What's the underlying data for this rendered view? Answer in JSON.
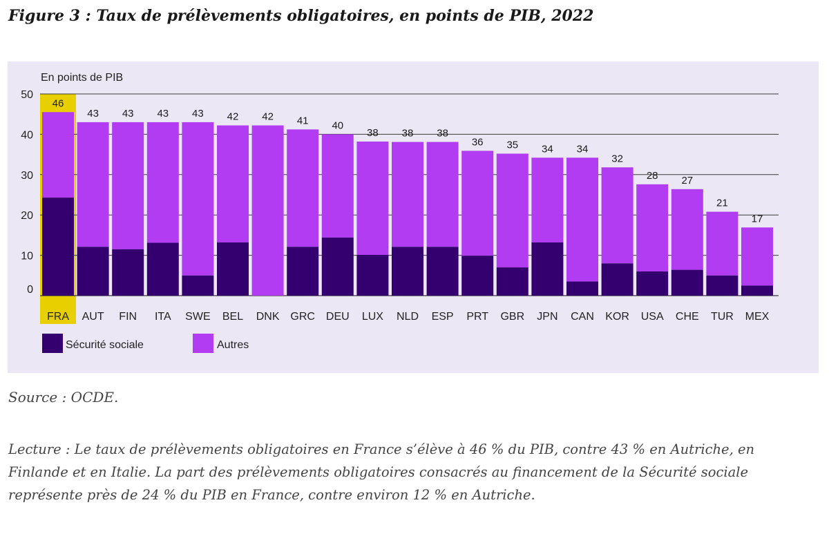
{
  "title": "Figure 3 : Taux de prélèvements obligatoires, en points de PIB, 2022",
  "source": "Source : OCDE.",
  "lecture": "Lecture : Le taux de prélèvements obligatoires en France s’élève à 46 % du PIB, contre 43 % en Autriche, en Finlande et en Italie. La part des prélèvements obligatoires consacrés au financement de la Sécurité sociale représente près de 24 % du PIB en France, contre environ 12 % en Autriche.",
  "colors": {
    "securite_sociale": "#34006f",
    "autres": "#b13cf2",
    "highlight": "#e8d000",
    "panel_bg": "#ebe7f5"
  },
  "chart_data": {
    "type": "bar",
    "stacked": true,
    "ylabel": "En points de PIB",
    "ylim": [
      0,
      50
    ],
    "yticks": [
      0,
      10,
      20,
      30,
      40,
      50
    ],
    "grid": true,
    "legend_position": "bottom-left",
    "highlight_category": "FRA",
    "categories": [
      "FRA",
      "AUT",
      "FIN",
      "ITA",
      "SWE",
      "BEL",
      "DNK",
      "GRC",
      "DEU",
      "LUX",
      "NLD",
      "ESP",
      "PRT",
      "GBR",
      "JPN",
      "CAN",
      "KOR",
      "USA",
      "CHE",
      "TUR",
      "MEX"
    ],
    "totals": [
      46,
      43,
      43,
      43,
      43,
      42,
      42,
      41,
      40,
      38,
      38,
      38,
      36,
      35,
      34,
      34,
      32,
      28,
      27,
      21,
      17
    ],
    "series": [
      {
        "name": "Sécurité sociale",
        "values": [
          24.3,
          12.1,
          11.5,
          13.1,
          5.0,
          13.2,
          0.0,
          12.1,
          14.4,
          10.1,
          12.1,
          12.1,
          9.9,
          7.0,
          13.2,
          3.5,
          8.0,
          6.0,
          6.4,
          5.0,
          2.5
        ]
      },
      {
        "name": "Autres",
        "values": [
          21.2,
          30.9,
          31.5,
          29.9,
          38.0,
          29.0,
          42.2,
          29.1,
          25.6,
          28.1,
          26.0,
          26.0,
          26.0,
          28.2,
          21.0,
          30.7,
          23.8,
          21.6,
          20.0,
          15.8,
          14.4
        ]
      }
    ]
  }
}
